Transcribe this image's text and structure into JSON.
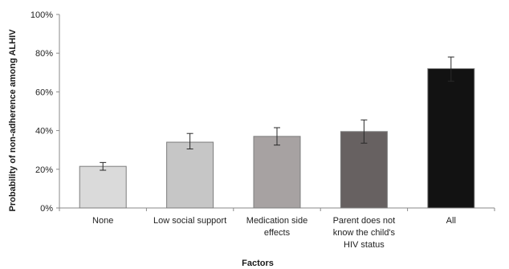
{
  "chart_data": {
    "type": "bar",
    "title": "",
    "xlabel": "Factors",
    "ylabel": "Probability of non-adherence among ALHIV",
    "ylim": [
      0,
      100
    ],
    "yticks": [
      "0%",
      "20%",
      "40%",
      "60%",
      "80%",
      "100%"
    ],
    "ytick_values": [
      0,
      20,
      40,
      60,
      80,
      100
    ],
    "categories": [
      [
        "None"
      ],
      [
        "Low social support"
      ],
      [
        "Medication side",
        "effects"
      ],
      [
        "Parent does not",
        "know the child's",
        "HIV status"
      ],
      [
        "All"
      ]
    ],
    "values": [
      21.5,
      34,
      37,
      39.5,
      72
    ],
    "error_low": [
      19.5,
      30.5,
      32.5,
      33.5,
      65.5
    ],
    "error_high": [
      23.5,
      38.5,
      41.5,
      45.5,
      78
    ],
    "bar_colors": [
      "#dadada",
      "#c6c6c6",
      "#a7a2a2",
      "#676161",
      "#121212"
    ],
    "bar_stroke": "#7d7d7d",
    "grid": false,
    "legend": "none"
  }
}
